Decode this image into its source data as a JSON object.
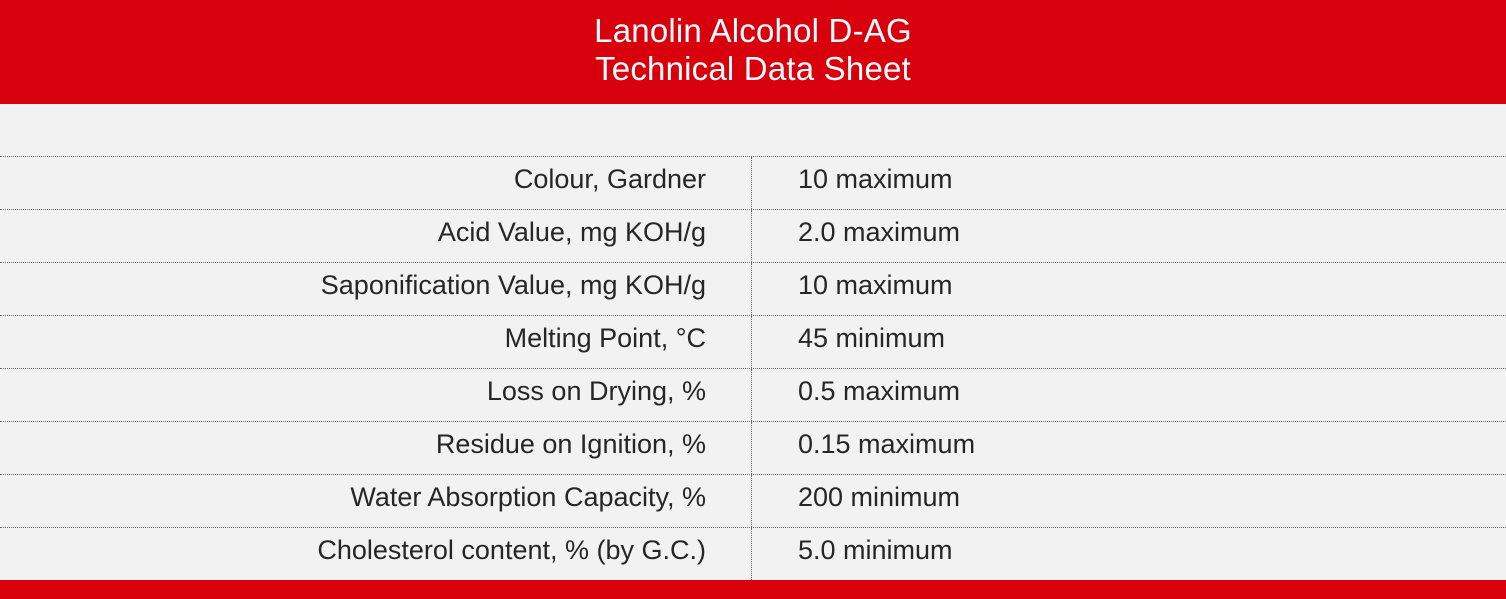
{
  "header": {
    "title": "Lanolin Alcohol D-AG",
    "subtitle": "Technical Data Sheet"
  },
  "table": {
    "rows": [
      {
        "label": "Colour, Gardner",
        "value": "10 maximum"
      },
      {
        "label": "Acid Value, mg KOH/g",
        "value": "2.0 maximum"
      },
      {
        "label": "Saponification Value, mg KOH/g",
        "value": "10 maximum"
      },
      {
        "label": "Melting Point, °C",
        "value": "45 minimum"
      },
      {
        "label": "Loss on Drying, %",
        "value": "0.5 maximum"
      },
      {
        "label": "Residue on Ignition, %",
        "value": "0.15 maximum"
      },
      {
        "label": "Water Absorption Capacity, %",
        "value": "200 minimum"
      },
      {
        "label": "Cholesterol content, % (by G.C.)",
        "value": "5.0 minimum"
      }
    ]
  },
  "colors": {
    "brand_red": "#d9000d",
    "background": "#f2f2f2",
    "text": "#262626"
  }
}
